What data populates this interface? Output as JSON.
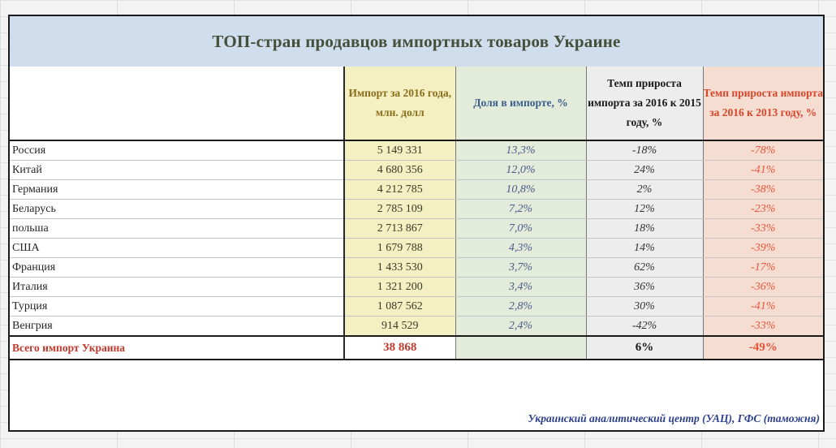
{
  "title": "ТОП-стран продавцов импортных товаров Украине",
  "headers": {
    "country": "",
    "import": "Импорт за 2016 года, млн. долл",
    "share": "Доля в импорте, %",
    "growth_2015": "Темп прироста импорта за 2016 к 2015 году, %",
    "growth_2013": "Темп прироста импорта за 2016 к 2013 году, %"
  },
  "rows": [
    {
      "country": "Россия",
      "import": "5 149 331",
      "share": "13,3%",
      "growth_2015": "-18%",
      "growth_2013": "-78%"
    },
    {
      "country": "Китай",
      "import": "4 680 356",
      "share": "12,0%",
      "growth_2015": "24%",
      "growth_2013": "-41%"
    },
    {
      "country": "Германия",
      "import": "4 212 785",
      "share": "10,8%",
      "growth_2015": "2%",
      "growth_2013": "-38%"
    },
    {
      "country": "Беларусь",
      "import": "2 785 109",
      "share": "7,2%",
      "growth_2015": "12%",
      "growth_2013": "-23%"
    },
    {
      "country": "польша",
      "import": "2 713 867",
      "share": "7,0%",
      "growth_2015": "18%",
      "growth_2013": "-33%"
    },
    {
      "country": "США",
      "import": "1 679 788",
      "share": "4,3%",
      "growth_2015": "14%",
      "growth_2013": "-39%"
    },
    {
      "country": "Франция",
      "import": "1 433 530",
      "share": "3,7%",
      "growth_2015": "62%",
      "growth_2013": "-17%"
    },
    {
      "country": "Италия",
      "import": "1 321 200",
      "share": "3,4%",
      "growth_2015": "36%",
      "growth_2013": "-36%"
    },
    {
      "country": "Турция",
      "import": "1 087 562",
      "share": "2,8%",
      "growth_2015": "30%",
      "growth_2013": "-41%"
    },
    {
      "country": "Венгрия",
      "import": "914 529",
      "share": "2,4%",
      "growth_2015": "-42%",
      "growth_2013": "-33%"
    }
  ],
  "total": {
    "label": "Всего импорт Украина",
    "import": "38 868",
    "share": "",
    "growth_2015": "6%",
    "growth_2013": "-49%"
  },
  "source": "Украинский аналитический центр (УАЦ), ГФС (таможня)",
  "colors": {
    "title_bg": "#cfdded",
    "import_col": "#f5f0c2",
    "share_col": "#e3ebdb",
    "growth_2015_col": "#ededed",
    "growth_2013_col": "#f6ddd2",
    "total_label": "#c0392b"
  }
}
